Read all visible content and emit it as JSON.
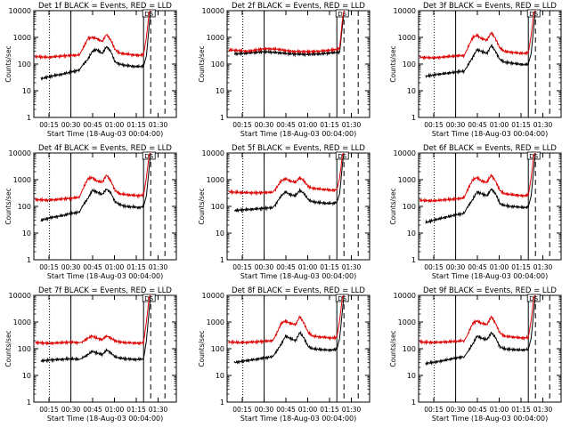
{
  "colors": {
    "events": "#000000",
    "lld": "#dd0000",
    "axis": "#000000",
    "background": "#ffffff"
  },
  "common": {
    "ylabel": "Counts/sec",
    "xlabel": "Start Time (18-Aug-03 00:04:00)",
    "y_ticks": [
      "1",
      "10",
      "100",
      "1000",
      "10000"
    ],
    "x_ticks": [
      "00:15",
      "00:30",
      "00:45",
      "01:00",
      "01:15",
      "01:30"
    ],
    "ds_label": "DS"
  },
  "chart_data": [
    {
      "type": "line",
      "title": "Det 1f BLACK = Events, RED = LLD",
      "xlabel": "Start Time (18-Aug-03 00:04:00)",
      "ylabel": "Counts/sec",
      "x_unit": "minutes after 00:04:00",
      "xlim": [
        0,
        100
      ],
      "ylim": [
        1,
        10000
      ],
      "yscale": "log",
      "dotted_x": 11,
      "solid_x": [
        26,
        77
      ],
      "dashed_x": [
        82,
        92
      ],
      "lld_start_x": 1,
      "series": [
        {
          "name": "Events",
          "color": "#000000",
          "x": [
            5,
            12,
            20,
            26,
            32,
            34,
            38,
            41,
            44,
            48,
            51,
            54,
            57,
            60,
            64,
            70,
            74,
            77,
            79,
            81,
            82
          ],
          "y": [
            28,
            35,
            42,
            50,
            60,
            90,
            150,
            300,
            350,
            250,
            450,
            300,
            120,
            100,
            90,
            82,
            80,
            85,
            200,
            3000,
            10000
          ]
        },
        {
          "name": "LLD",
          "color": "#dd0000",
          "x": [
            1,
            10,
            20,
            26,
            32,
            34,
            38,
            41,
            44,
            48,
            51,
            54,
            57,
            60,
            64,
            70,
            74,
            77,
            79,
            81,
            82
          ],
          "y": [
            190,
            180,
            200,
            210,
            220,
            350,
            900,
            1000,
            900,
            700,
            1300,
            800,
            350,
            260,
            240,
            220,
            210,
            230,
            1000,
            9000,
            10000
          ]
        }
      ]
    },
    {
      "type": "line",
      "title": "Det 2f BLACK = Events, RED = LLD",
      "xlabel": "Start Time (18-Aug-03 00:04:00)",
      "ylabel": "Counts/sec",
      "x_unit": "minutes after 00:04:00",
      "xlim": [
        0,
        100
      ],
      "ylim": [
        1,
        10000
      ],
      "yscale": "log",
      "dotted_x": 11,
      "solid_x": [
        26,
        77
      ],
      "dashed_x": [
        82,
        92
      ],
      "lld_start_x": 1,
      "series": [
        {
          "name": "Events",
          "color": "#000000",
          "x": [
            5,
            15,
            26,
            35,
            45,
            55,
            65,
            72,
            76,
            79,
            81,
            82
          ],
          "y": [
            240,
            260,
            290,
            270,
            240,
            230,
            240,
            260,
            270,
            280,
            3000,
            10000
          ]
        },
        {
          "name": "LLD",
          "color": "#dd0000",
          "x": [
            1,
            8,
            15,
            26,
            35,
            45,
            55,
            65,
            72,
            76,
            79,
            81,
            82
          ],
          "y": [
            340,
            320,
            300,
            380,
            360,
            300,
            290,
            300,
            330,
            350,
            400,
            5000,
            10000
          ]
        }
      ]
    },
    {
      "type": "line",
      "title": "Det 3f BLACK = Events, RED = LLD",
      "xlabel": "Start Time (18-Aug-03 00:04:00)",
      "ylabel": "Counts/sec",
      "x_unit": "minutes after 00:04:00",
      "xlim": [
        0,
        100
      ],
      "ylim": [
        1,
        10000
      ],
      "yscale": "log",
      "dotted_x": 11,
      "solid_x": [
        26,
        77
      ],
      "dashed_x": [
        82,
        92
      ],
      "lld_start_x": 1,
      "series": [
        {
          "name": "Events",
          "color": "#000000",
          "x": [
            5,
            12,
            20,
            26,
            32,
            34,
            38,
            41,
            44,
            48,
            51,
            54,
            57,
            60,
            64,
            70,
            74,
            77,
            79,
            81,
            82
          ],
          "y": [
            35,
            40,
            45,
            50,
            55,
            80,
            180,
            350,
            300,
            250,
            500,
            300,
            150,
            120,
            110,
            100,
            95,
            100,
            250,
            3000,
            10000
          ]
        },
        {
          "name": "LLD",
          "color": "#dd0000",
          "x": [
            1,
            10,
            20,
            26,
            32,
            34,
            38,
            41,
            44,
            48,
            51,
            54,
            57,
            60,
            64,
            70,
            74,
            77,
            79,
            81,
            82
          ],
          "y": [
            180,
            170,
            190,
            200,
            210,
            350,
            1000,
            1200,
            900,
            800,
            1500,
            900,
            400,
            300,
            280,
            260,
            250,
            270,
            1200,
            9000,
            10000
          ]
        }
      ]
    },
    {
      "type": "line",
      "title": "Det 4f BLACK = Events, RED = LLD",
      "xlabel": "Start Time (18-Aug-03 00:04:00)",
      "ylabel": "Counts/sec",
      "x_unit": "minutes after 00:04:00",
      "xlim": [
        0,
        100
      ],
      "ylim": [
        1,
        10000
      ],
      "yscale": "log",
      "dotted_x": 11,
      "solid_x": [
        26,
        77
      ],
      "dashed_x": [
        82,
        92
      ],
      "lld_start_x": 1,
      "series": [
        {
          "name": "Events",
          "color": "#000000",
          "x": [
            5,
            12,
            20,
            26,
            32,
            34,
            38,
            41,
            44,
            48,
            51,
            54,
            57,
            60,
            64,
            70,
            74,
            77,
            79,
            81,
            82
          ],
          "y": [
            30,
            38,
            45,
            55,
            60,
            100,
            200,
            400,
            350,
            280,
            450,
            320,
            150,
            120,
            100,
            95,
            90,
            100,
            250,
            3000,
            10000
          ]
        },
        {
          "name": "LLD",
          "color": "#dd0000",
          "x": [
            1,
            10,
            20,
            26,
            32,
            34,
            38,
            41,
            44,
            48,
            51,
            54,
            57,
            60,
            64,
            70,
            74,
            77,
            79,
            81,
            82
          ],
          "y": [
            180,
            170,
            190,
            200,
            220,
            400,
            1100,
            1200,
            900,
            800,
            1500,
            900,
            400,
            300,
            280,
            260,
            250,
            270,
            1200,
            9000,
            10000
          ]
        }
      ]
    },
    {
      "type": "line",
      "title": "Det 5f BLACK = Events, RED = LLD",
      "xlabel": "Start Time (18-Aug-03 00:04:00)",
      "ylabel": "Counts/sec",
      "x_unit": "minutes after 00:04:00",
      "xlim": [
        0,
        100
      ],
      "ylim": [
        1,
        10000
      ],
      "yscale": "log",
      "dotted_x": 11,
      "solid_x": [
        26,
        77
      ],
      "dashed_x": [
        82,
        92
      ],
      "lld_start_x": 1,
      "series": [
        {
          "name": "Events",
          "color": "#000000",
          "x": [
            5,
            12,
            20,
            26,
            32,
            34,
            38,
            41,
            44,
            48,
            51,
            54,
            57,
            60,
            64,
            70,
            74,
            77,
            79,
            81,
            82
          ],
          "y": [
            70,
            75,
            80,
            85,
            90,
            120,
            250,
            350,
            280,
            250,
            400,
            300,
            180,
            150,
            140,
            130,
            130,
            140,
            300,
            4000,
            10000
          ]
        },
        {
          "name": "LLD",
          "color": "#dd0000",
          "x": [
            1,
            10,
            20,
            26,
            32,
            34,
            38,
            41,
            44,
            48,
            51,
            54,
            57,
            60,
            64,
            70,
            74,
            77,
            79,
            81,
            82
          ],
          "y": [
            350,
            330,
            320,
            330,
            340,
            450,
            900,
            1100,
            900,
            800,
            1200,
            900,
            550,
            480,
            450,
            420,
            400,
            420,
            1200,
            9000,
            10000
          ]
        }
      ]
    },
    {
      "type": "line",
      "title": "Det 6f BLACK = Events, RED = LLD",
      "xlabel": "Start Time (18-Aug-03 00:04:00)",
      "ylabel": "Counts/sec",
      "x_unit": "minutes after 00:04:00",
      "xlim": [
        0,
        100
      ],
      "ylim": [
        1,
        10000
      ],
      "yscale": "log",
      "dotted_x": 11,
      "solid_x": [
        26,
        77
      ],
      "dashed_x": [
        82,
        92
      ],
      "lld_start_x": 1,
      "series": [
        {
          "name": "Events",
          "color": "#000000",
          "x": [
            5,
            12,
            20,
            26,
            32,
            34,
            38,
            41,
            44,
            48,
            51,
            54,
            57,
            60,
            64,
            70,
            74,
            77,
            79,
            81,
            82
          ],
          "y": [
            25,
            32,
            40,
            48,
            55,
            90,
            180,
            350,
            300,
            250,
            450,
            300,
            130,
            110,
            100,
            95,
            90,
            95,
            250,
            3000,
            10000
          ]
        },
        {
          "name": "LLD",
          "color": "#dd0000",
          "x": [
            1,
            10,
            20,
            26,
            32,
            34,
            38,
            41,
            44,
            48,
            51,
            54,
            57,
            60,
            64,
            70,
            74,
            77,
            79,
            81,
            82
          ],
          "y": [
            170,
            160,
            180,
            190,
            210,
            380,
            1000,
            1200,
            900,
            800,
            1500,
            900,
            400,
            300,
            280,
            260,
            250,
            270,
            1200,
            9000,
            10000
          ]
        }
      ]
    },
    {
      "type": "line",
      "title": "Det 7f BLACK = Events, RED = LLD",
      "xlabel": "Start Time (18-Aug-03 00:04:00)",
      "ylabel": "Counts/sec",
      "x_unit": "minutes after 00:04:00",
      "xlim": [
        0,
        100
      ],
      "ylim": [
        1,
        10000
      ],
      "yscale": "log",
      "dotted_x": 11,
      "solid_x": [
        26,
        77
      ],
      "dashed_x": [
        82,
        92
      ],
      "lld_start_x": 1,
      "series": [
        {
          "name": "Events",
          "color": "#000000",
          "x": [
            5,
            12,
            20,
            26,
            32,
            34,
            38,
            41,
            44,
            48,
            51,
            54,
            57,
            60,
            64,
            70,
            74,
            77,
            79,
            81,
            82
          ],
          "y": [
            35,
            38,
            40,
            42,
            40,
            45,
            60,
            80,
            70,
            60,
            90,
            70,
            50,
            45,
            42,
            40,
            40,
            42,
            200,
            3000,
            10000
          ]
        },
        {
          "name": "LLD",
          "color": "#dd0000",
          "x": [
            1,
            10,
            20,
            26,
            32,
            34,
            38,
            41,
            44,
            48,
            51,
            54,
            57,
            60,
            64,
            70,
            74,
            77,
            79,
            81,
            82
          ],
          "y": [
            170,
            160,
            170,
            175,
            170,
            180,
            250,
            300,
            250,
            220,
            300,
            250,
            200,
            180,
            170,
            165,
            160,
            170,
            1000,
            9000,
            10000
          ]
        }
      ]
    },
    {
      "type": "line",
      "title": "Det 8f BLACK = Events, RED = LLD",
      "xlabel": "Start Time (18-Aug-03 00:04:00)",
      "ylabel": "Counts/sec",
      "x_unit": "minutes after 00:04:00",
      "xlim": [
        0,
        100
      ],
      "ylim": [
        1,
        10000
      ],
      "yscale": "log",
      "dotted_x": 11,
      "solid_x": [
        26,
        77
      ],
      "dashed_x": [
        82,
        92
      ],
      "lld_start_x": 1,
      "series": [
        {
          "name": "Events",
          "color": "#000000",
          "x": [
            5,
            12,
            20,
            26,
            32,
            34,
            38,
            41,
            44,
            48,
            51,
            54,
            57,
            60,
            64,
            70,
            74,
            77,
            79,
            81,
            82
          ],
          "y": [
            30,
            35,
            40,
            45,
            50,
            70,
            150,
            300,
            250,
            200,
            400,
            250,
            120,
            100,
            95,
            90,
            90,
            95,
            250,
            3000,
            10000
          ]
        },
        {
          "name": "LLD",
          "color": "#dd0000",
          "x": [
            1,
            10,
            20,
            26,
            32,
            34,
            38,
            41,
            44,
            48,
            51,
            54,
            57,
            60,
            64,
            70,
            74,
            77,
            79,
            81,
            82
          ],
          "y": [
            180,
            170,
            180,
            190,
            200,
            300,
            900,
            1100,
            900,
            800,
            1600,
            900,
            400,
            300,
            280,
            260,
            250,
            270,
            1200,
            9000,
            10000
          ]
        }
      ]
    },
    {
      "type": "line",
      "title": "Det 9f BLACK = Events, RED = LLD",
      "xlabel": "Start Time (18-Aug-03 00:04:00)",
      "ylabel": "Counts/sec",
      "x_unit": "minutes after 00:04:00",
      "xlim": [
        0,
        100
      ],
      "ylim": [
        1,
        10000
      ],
      "yscale": "log",
      "dotted_x": 11,
      "solid_x": [
        26,
        77
      ],
      "dashed_x": [
        82,
        92
      ],
      "lld_start_x": 1,
      "series": [
        {
          "name": "Events",
          "color": "#000000",
          "x": [
            5,
            12,
            20,
            26,
            32,
            34,
            38,
            41,
            44,
            48,
            51,
            54,
            57,
            60,
            64,
            70,
            74,
            77,
            79,
            81,
            82
          ],
          "y": [
            28,
            32,
            38,
            45,
            50,
            70,
            150,
            300,
            250,
            220,
            400,
            260,
            120,
            100,
            95,
            90,
            90,
            95,
            250,
            3000,
            10000
          ]
        },
        {
          "name": "LLD",
          "color": "#dd0000",
          "x": [
            1,
            10,
            20,
            26,
            32,
            34,
            38,
            41,
            44,
            48,
            51,
            54,
            57,
            60,
            64,
            70,
            74,
            77,
            79,
            81,
            82
          ],
          "y": [
            180,
            170,
            180,
            190,
            200,
            300,
            900,
            1100,
            900,
            800,
            1600,
            900,
            400,
            300,
            280,
            260,
            250,
            270,
            1200,
            9000,
            10000
          ]
        }
      ]
    }
  ]
}
